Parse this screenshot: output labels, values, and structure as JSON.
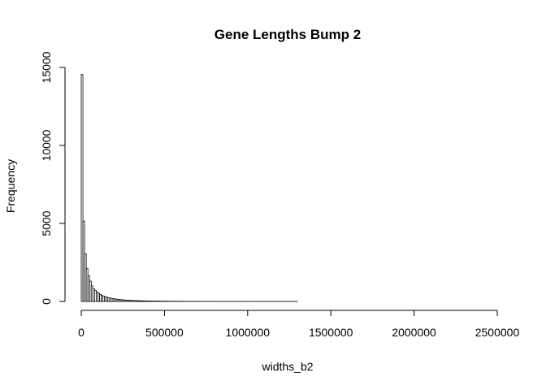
{
  "chart_data": {
    "type": "bar",
    "title": "Gene Lengths Bump 2",
    "xlabel": "widths_b2",
    "ylabel": "Frequency",
    "bin_width": 10000,
    "xlim": [
      0,
      2500000
    ],
    "ylim": [
      0,
      15000
    ],
    "x_ticks": [
      0,
      500000,
      1000000,
      1500000,
      2000000,
      2500000
    ],
    "x_tick_labels": [
      "0",
      "500000",
      "1000000",
      "1500000",
      "2000000",
      "2500000"
    ],
    "y_ticks": [
      0,
      5000,
      10000,
      15000
    ],
    "y_tick_labels": [
      "0",
      "5000",
      "10000",
      "15000"
    ],
    "values": [
      14550,
      5150,
      3050,
      2100,
      1650,
      1300,
      1000,
      800,
      700,
      600,
      520,
      450,
      390,
      340,
      300,
      270,
      240,
      215,
      195,
      175,
      158,
      143,
      130,
      118,
      108,
      98,
      90,
      82,
      75,
      69,
      63,
      58,
      53,
      49,
      45,
      42,
      39,
      36,
      33,
      31,
      29,
      27,
      25,
      23,
      22,
      20,
      19,
      18,
      17,
      16,
      15,
      14,
      13,
      12,
      11,
      11,
      10,
      9,
      9,
      8,
      8,
      7,
      7,
      6,
      6,
      6,
      5,
      5,
      5,
      4,
      4,
      4,
      4,
      3,
      3,
      3,
      3,
      3,
      3,
      2,
      2,
      2,
      2,
      2,
      2,
      2,
      2,
      2,
      2,
      1,
      1,
      1,
      1,
      1,
      1,
      1,
      1,
      1,
      1,
      1,
      1,
      1,
      1,
      1,
      1,
      1,
      1,
      1,
      1,
      1,
      1,
      1,
      1,
      1,
      1,
      1,
      1,
      1,
      1,
      1,
      1,
      1,
      1,
      1,
      1,
      1,
      1,
      1,
      1,
      1,
      0,
      0,
      0,
      0,
      0,
      0,
      0,
      0,
      0,
      0,
      0,
      0,
      0,
      0,
      0,
      0,
      0,
      0,
      0,
      0,
      0,
      0,
      0,
      0,
      0,
      0,
      0,
      0,
      0,
      0,
      0,
      0,
      0,
      0,
      0,
      0,
      0,
      0,
      0,
      0,
      0,
      0,
      0,
      0,
      0,
      0,
      0,
      0,
      0,
      0,
      0,
      0,
      0,
      0,
      0,
      0,
      0,
      0,
      0,
      0,
      0,
      0,
      0,
      0,
      0,
      0,
      0,
      0,
      0,
      0,
      0,
      0,
      0,
      0,
      0,
      0,
      0,
      0,
      0,
      0,
      0,
      0,
      0,
      0,
      0,
      0,
      0,
      0,
      0,
      0,
      0,
      0,
      0,
      0,
      0,
      0,
      0,
      0,
      0,
      0,
      0,
      0,
      0,
      0,
      0,
      0,
      0,
      0,
      0,
      0,
      0,
      0,
      0,
      0,
      0,
      0,
      0,
      0,
      0,
      0,
      0,
      0,
      0,
      0,
      0,
      0,
      0,
      0,
      0,
      0,
      0,
      0,
      0,
      0,
      0,
      0,
      0,
      0,
      0,
      0,
      0,
      0,
      0,
      0,
      0,
      0
    ]
  }
}
